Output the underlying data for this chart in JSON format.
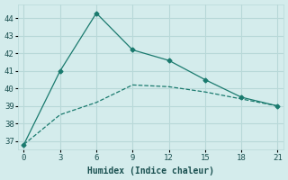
{
  "line1_x": [
    0,
    3,
    6,
    9,
    12,
    15,
    18,
    21
  ],
  "line1_y": [
    36.8,
    41.0,
    44.3,
    42.2,
    41.6,
    40.5,
    39.5,
    39.0
  ],
  "line2_x": [
    0,
    3,
    6,
    9,
    12,
    15,
    18,
    21
  ],
  "line2_y": [
    36.8,
    38.5,
    39.2,
    40.2,
    40.1,
    39.8,
    39.4,
    39.0
  ],
  "line_color": "#1a7a6e",
  "bg_color": "#d4ecec",
  "grid_color": "#b8d8d8",
  "xlabel": "Humidex (Indice chaleur)",
  "xlim": [
    -0.5,
    21.5
  ],
  "ylim": [
    36.5,
    44.8
  ],
  "xticks": [
    0,
    3,
    6,
    9,
    12,
    15,
    18,
    21
  ],
  "yticks": [
    37,
    38,
    39,
    40,
    41,
    42,
    43,
    44
  ],
  "font_color": "#1a5050"
}
